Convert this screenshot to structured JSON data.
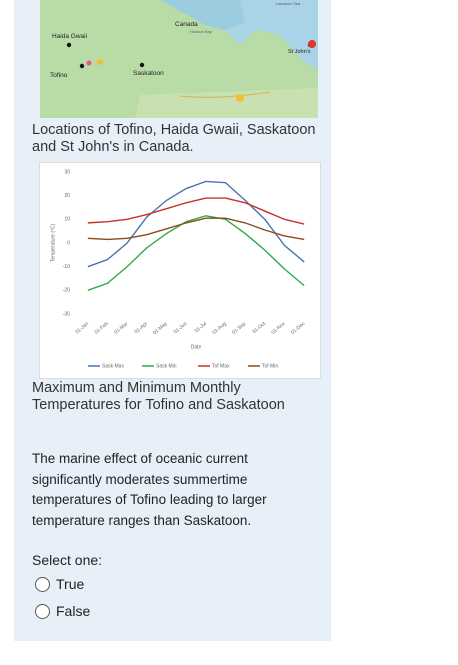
{
  "map": {
    "labels": [
      "Canada",
      "Hudson Bay",
      "Labrador Sea",
      "Haida Gwaii",
      "Tofino",
      "Saskatoon",
      "St John's"
    ]
  },
  "map_caption": "Locations of Tofino, Haida Gwaii, Saskatoon and St John's in Canada.",
  "chart_data": {
    "type": "line",
    "x_label": "Date",
    "y_label": "Temperature (ºC)",
    "categories": [
      "01-Jan",
      "01-Feb",
      "01-Mar",
      "01-Apr",
      "01-May",
      "01-Jun",
      "01-Jul",
      "01-Aug",
      "01-Sep",
      "01-Oct",
      "01-Nov",
      "01-Dec"
    ],
    "series": [
      {
        "name": "Sask Max",
        "color": "#4a72b0",
        "values": [
          -10,
          -7,
          0,
          11,
          18,
          23,
          26,
          25.5,
          18,
          10,
          -1,
          -8
        ]
      },
      {
        "name": "Sask Min",
        "color": "#2eaa4a",
        "values": [
          -20,
          -17,
          -10,
          -2,
          4,
          9,
          11.5,
          10,
          4,
          -3,
          -11,
          -18
        ]
      },
      {
        "name": "Tof Max",
        "color": "#c8302c",
        "values": [
          8.5,
          9,
          10,
          12,
          14.5,
          17,
          19,
          19,
          17,
          13.5,
          10,
          8
        ]
      },
      {
        "name": "Tof Min",
        "color": "#8b4a1c",
        "values": [
          2,
          1.5,
          2,
          3.5,
          6,
          8.5,
          10.5,
          10.5,
          8.5,
          5.5,
          3,
          1.5
        ]
      }
    ],
    "ylim": [
      -30,
      30
    ],
    "yticks": [
      -30,
      -20,
      -10,
      0,
      10,
      20,
      30
    ],
    "grid": false,
    "legend": "bottom"
  },
  "chart_caption": "Maximum and Minimum Monthly Temperatures for Tofino and Saskatoon",
  "question": "The marine effect of oceanic current significantly moderates summertime temperatures of Tofino leading to larger temperature ranges than Saskatoon.",
  "prompt": "Select one:",
  "options": [
    "True",
    "False"
  ]
}
